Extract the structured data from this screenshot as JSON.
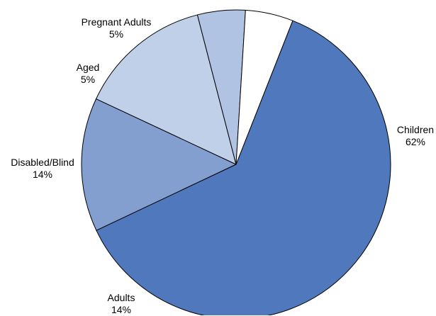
{
  "chart_data": {
    "type": "pie",
    "slices": [
      {
        "label": "Children",
        "value": 62,
        "value_label": "62%",
        "color": "#4f78bd"
      },
      {
        "label": "Adults",
        "value": 14,
        "value_label": "14%",
        "color": "#829fcf"
      },
      {
        "label": "Disabled/Blind",
        "value": 14,
        "value_label": "14%",
        "color": "#c1d0e9"
      },
      {
        "label": "Aged",
        "value": 5,
        "value_label": "5%",
        "color": "#b1c3e3"
      },
      {
        "label": "Pregnant Adults",
        "value": 5,
        "value_label": "5%",
        "color": "#ffffff"
      }
    ],
    "edge_color": "#000000"
  }
}
